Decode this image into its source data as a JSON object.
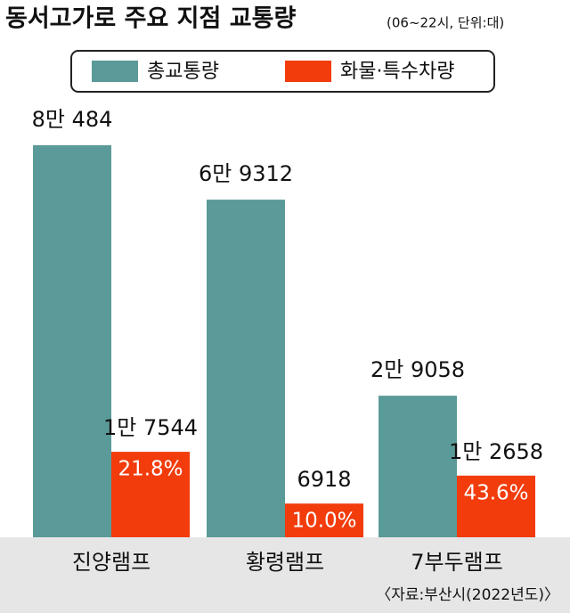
{
  "chart_data": {
    "type": "bar",
    "title": "동서고가로 주요 지점 교통량",
    "subtitle": "(06~22시, 단위:대)",
    "source": "〈자료:부산시(2022년도)〉",
    "categories": [
      "진양램프",
      "황령램프",
      "7부두램프"
    ],
    "series": [
      {
        "name": "총교통량",
        "color": "#5a9a98",
        "values": [
          80484,
          69312,
          29058
        ],
        "value_labels": [
          "8만 484",
          "6만 9312",
          "2만 9058"
        ]
      },
      {
        "name": "화물·특수차량",
        "color": "#f23c0c",
        "values": [
          17544,
          6918,
          12658
        ],
        "value_labels": [
          "1만 7544",
          "6918",
          "1만 2658"
        ],
        "shares": [
          21.8,
          10.0,
          43.6
        ],
        "share_labels": [
          "21.8%",
          "10.0%",
          "43.6%"
        ]
      }
    ],
    "ylim": [
      0,
      90000
    ],
    "grid": false
  }
}
